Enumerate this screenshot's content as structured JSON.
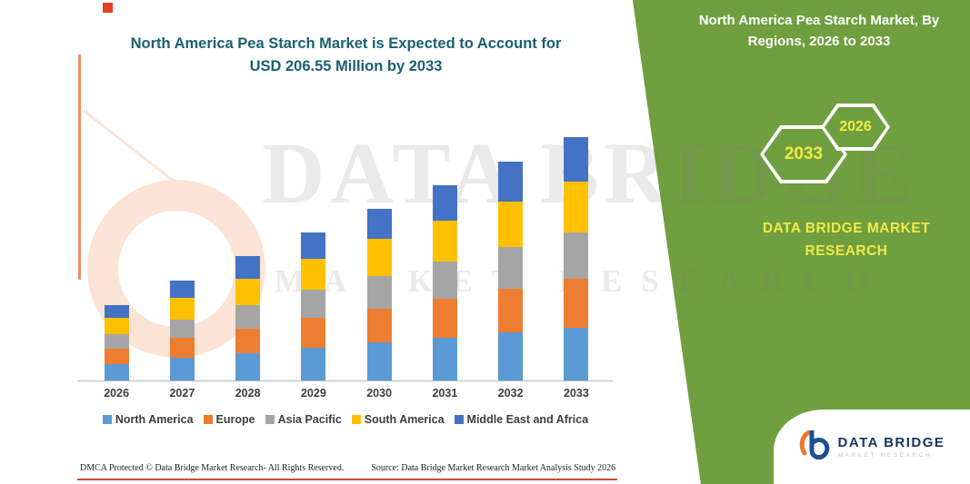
{
  "header": {
    "title_line1": "North America Pea Starch Market is Expected to Account for",
    "title_line2": "USD 206.55 Million by 2033"
  },
  "side_panel": {
    "title_line1": "North America Pea Starch Market, By",
    "title_line2": "Regions, 2026 to 2033",
    "hex_back": "2033",
    "hex_front": "2026",
    "brand_line1": "DATA BRIDGE MARKET",
    "brand_line2": "RESEARCH",
    "bg_color": "#6f9f3e",
    "accent_text_color": "#f1ec45"
  },
  "watermark": {
    "line1": "DATA BRIDGE",
    "line2": "MARKET RESEARCH"
  },
  "chart_data": {
    "type": "bar",
    "stacked": true,
    "title": "North America Pea Starch Market is Expected to Account for USD 206.55 Million by 2033",
    "unit": "USD Million",
    "categories": [
      "2026",
      "2027",
      "2028",
      "2029",
      "2030",
      "2031",
      "2032",
      "2033"
    ],
    "series": [
      {
        "name": "North America",
        "color": "#5B9BD5",
        "values": [
          14,
          19,
          23,
          28,
          32,
          36,
          41,
          45
        ]
      },
      {
        "name": "Europe",
        "color": "#ED7D31",
        "values": [
          13,
          17,
          21,
          25,
          29,
          33,
          37,
          41
        ]
      },
      {
        "name": "Asia Pacific",
        "color": "#A5A5A5",
        "values": [
          12,
          16,
          20,
          24,
          28,
          32,
          35,
          40
        ]
      },
      {
        "name": "South America",
        "color": "#FFC000",
        "values": [
          14,
          18,
          22,
          26,
          31,
          35,
          39,
          43
        ]
      },
      {
        "name": "Middle East and Africa",
        "color": "#4472C4",
        "values": [
          11,
          15,
          20,
          23,
          26,
          30,
          34,
          37.55
        ]
      }
    ],
    "totals": [
      64,
      85,
      106,
      126,
      146,
      166,
      186,
      206.55
    ],
    "xlabel": "",
    "ylabel": "",
    "ylim": [
      0,
      210
    ],
    "grid": false,
    "legend_position": "bottom"
  },
  "footer": {
    "dmca": "DMCA Protected © Data Bridge Market Research-  All Rights Reserved.",
    "source": "Source: Data Bridge Market Research  Market Analysis Study 2026"
  },
  "logo": {
    "name": "DATA BRIDGE",
    "subtitle": "MARKET RESEARCH"
  }
}
